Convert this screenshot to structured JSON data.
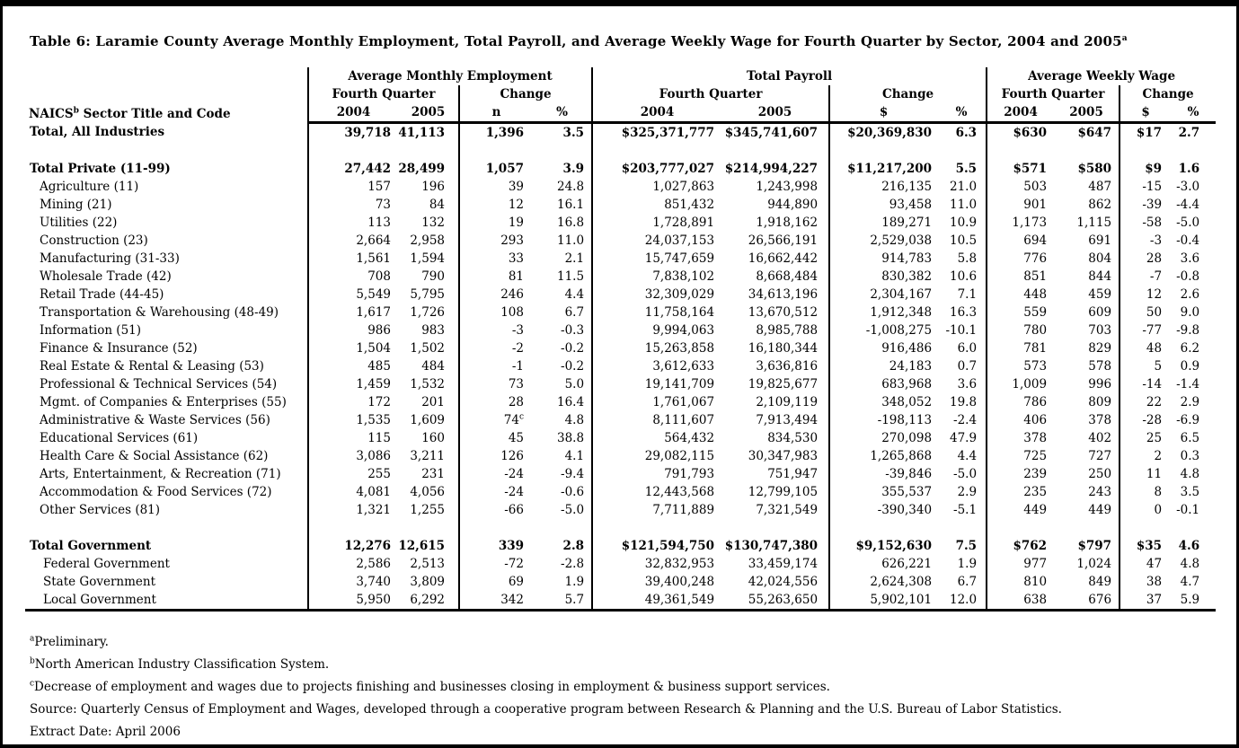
{
  "title": {
    "text": "Table 6: Laramie County Average Monthly Employment, Total Payroll, and Average Weekly Wage for Fourth Quarter by Sector, 2004 and 2005",
    "superscript": "a"
  },
  "table": {
    "stub_header": {
      "prefix": "NAICS",
      "sup": "b",
      "rest": " Sector Title and Code"
    },
    "groups": [
      {
        "label": "Average Monthly Employment",
        "sub": [
          {
            "label": "Fourth Quarter",
            "cols": [
              "2004",
              "2005"
            ]
          },
          {
            "label": "Change",
            "cols": [
              "n",
              "%"
            ]
          }
        ]
      },
      {
        "label": "Total Payroll",
        "sub": [
          {
            "label": "Fourth Quarter",
            "cols": [
              "2004",
              "2005"
            ]
          },
          {
            "label": "Change",
            "cols": [
              "$",
              "%"
            ]
          }
        ]
      },
      {
        "label": "Average Weekly Wage",
        "sub": [
          {
            "label": "Fourth Quarter",
            "cols": [
              "2004",
              "2005"
            ]
          },
          {
            "label": "Change",
            "cols": [
              "$",
              "%"
            ]
          }
        ]
      }
    ],
    "rows": [
      {
        "label": "Total, All Industries",
        "style": "total",
        "cells": [
          "39,718",
          "41,113",
          "1,396",
          "3.5",
          "$325,371,777",
          "$345,741,607",
          "$20,369,830",
          "6.3",
          "$630",
          "$647",
          "$17",
          "2.7"
        ]
      },
      {
        "label": "",
        "style": "spacer",
        "cells": [
          "",
          "",
          "",
          "",
          "",
          "",
          "",
          "",
          "",
          "",
          "",
          ""
        ]
      },
      {
        "label": "Total Private (11-99)",
        "style": "total",
        "cells": [
          "27,442",
          "28,499",
          "1,057",
          "3.9",
          "$203,777,027",
          "$214,994,227",
          "$11,217,200",
          "5.5",
          "$571",
          "$580",
          "$9",
          "1.6"
        ]
      },
      {
        "label": "Agriculture (11)",
        "style": "sector",
        "cells": [
          "157",
          "196",
          "39",
          "24.8",
          "1,027,863",
          "1,243,998",
          "216,135",
          "21.0",
          "503",
          "487",
          "-15",
          "-3.0"
        ]
      },
      {
        "label": "Mining (21)",
        "style": "sector",
        "cells": [
          "73",
          "84",
          "12",
          "16.1",
          "851,432",
          "944,890",
          "93,458",
          "11.0",
          "901",
          "862",
          "-39",
          "-4.4"
        ]
      },
      {
        "label": "Utilities (22)",
        "style": "sector",
        "cells": [
          "113",
          "132",
          "19",
          "16.8",
          "1,728,891",
          "1,918,162",
          "189,271",
          "10.9",
          "1,173",
          "1,115",
          "-58",
          "-5.0"
        ]
      },
      {
        "label": "Construction (23)",
        "style": "sector",
        "cells": [
          "2,664",
          "2,958",
          "293",
          "11.0",
          "24,037,153",
          "26,566,191",
          "2,529,038",
          "10.5",
          "694",
          "691",
          "-3",
          "-0.4"
        ]
      },
      {
        "label": "Manufacturing (31-33)",
        "style": "sector",
        "cells": [
          "1,561",
          "1,594",
          "33",
          "2.1",
          "15,747,659",
          "16,662,442",
          "914,783",
          "5.8",
          "776",
          "804",
          "28",
          "3.6"
        ]
      },
      {
        "label": "Wholesale Trade (42)",
        "style": "sector",
        "cells": [
          "708",
          "790",
          "81",
          "11.5",
          "7,838,102",
          "8,668,484",
          "830,382",
          "10.6",
          "851",
          "844",
          "-7",
          "-0.8"
        ]
      },
      {
        "label": "Retail Trade (44-45)",
        "style": "sector",
        "cells": [
          "5,549",
          "5,795",
          "246",
          "4.4",
          "32,309,029",
          "34,613,196",
          "2,304,167",
          "7.1",
          "448",
          "459",
          "12",
          "2.6"
        ]
      },
      {
        "label": "Transportation & Warehousing (48-49)",
        "style": "sector",
        "cells": [
          "1,617",
          "1,726",
          "108",
          "6.7",
          "11,758,164",
          "13,670,512",
          "1,912,348",
          "16.3",
          "559",
          "609",
          "50",
          "9.0"
        ]
      },
      {
        "label": "Information (51)",
        "style": "sector",
        "cells": [
          "986",
          "983",
          "-3",
          "-0.3",
          "9,994,063",
          "8,985,788",
          "-1,008,275",
          "-10.1",
          "780",
          "703",
          "-77",
          "-9.8"
        ]
      },
      {
        "label": "Finance & Insurance (52)",
        "style": "sector",
        "cells": [
          "1,504",
          "1,502",
          "-2",
          "-0.2",
          "15,263,858",
          "16,180,344",
          "916,486",
          "6.0",
          "781",
          "829",
          "48",
          "6.2"
        ]
      },
      {
        "label": "Real Estate & Rental & Leasing (53)",
        "style": "sector",
        "cells": [
          "485",
          "484",
          "-1",
          "-0.2",
          "3,612,633",
          "3,636,816",
          "24,183",
          "0.7",
          "573",
          "578",
          "5",
          "0.9"
        ]
      },
      {
        "label": "Professional & Technical Services (54)",
        "style": "sector",
        "cells": [
          "1,459",
          "1,532",
          "73",
          "5.0",
          "19,141,709",
          "19,825,677",
          "683,968",
          "3.6",
          "1,009",
          "996",
          "-14",
          "-1.4"
        ]
      },
      {
        "label": "Mgmt. of Companies & Enterprises (55)",
        "style": "sector",
        "cells": [
          "172",
          "201",
          "28",
          "16.4",
          "1,761,067",
          "2,109,119",
          "348,052",
          "19.8",
          "786",
          "809",
          "22",
          "2.9"
        ]
      },
      {
        "label": "Administrative & Waste Services (56)",
        "style": "sector",
        "n_sup": "c",
        "cells": [
          "1,535",
          "1,609",
          "74",
          "4.8",
          "8,111,607",
          "7,913,494",
          "-198,113",
          "-2.4",
          "406",
          "378",
          "-28",
          "-6.9"
        ]
      },
      {
        "label": "Educational Services (61)",
        "style": "sector",
        "cells": [
          "115",
          "160",
          "45",
          "38.8",
          "564,432",
          "834,530",
          "270,098",
          "47.9",
          "378",
          "402",
          "25",
          "6.5"
        ]
      },
      {
        "label": "Health Care & Social Assistance (62)",
        "style": "sector",
        "cells": [
          "3,086",
          "3,211",
          "126",
          "4.1",
          "29,082,115",
          "30,347,983",
          "1,265,868",
          "4.4",
          "725",
          "727",
          "2",
          "0.3"
        ]
      },
      {
        "label": "Arts, Entertainment, & Recreation (71)",
        "style": "sector",
        "cells": [
          "255",
          "231",
          "-24",
          "-9.4",
          "791,793",
          "751,947",
          "-39,846",
          "-5.0",
          "239",
          "250",
          "11",
          "4.8"
        ]
      },
      {
        "label": "Accommodation & Food Services (72)",
        "style": "sector",
        "cells": [
          "4,081",
          "4,056",
          "-24",
          "-0.6",
          "12,443,568",
          "12,799,105",
          "355,537",
          "2.9",
          "235",
          "243",
          "8",
          "3.5"
        ]
      },
      {
        "label": "Other Services (81)",
        "style": "sector",
        "cells": [
          "1,321",
          "1,255",
          "-66",
          "-5.0",
          "7,711,889",
          "7,321,549",
          "-390,340",
          "-5.1",
          "449",
          "449",
          "0",
          "-0.1"
        ]
      },
      {
        "label": "",
        "style": "spacer",
        "cells": [
          "",
          "",
          "",
          "",
          "",
          "",
          "",
          "",
          "",
          "",
          "",
          ""
        ]
      },
      {
        "label": "Total Government",
        "style": "total",
        "cells": [
          "12,276",
          "12,615",
          "339",
          "2.8",
          "$121,594,750",
          "$130,747,380",
          "$9,152,630",
          "7.5",
          "$762",
          "$797",
          "$35",
          "4.6"
        ]
      },
      {
        "label": "Federal Government",
        "style": "govsub",
        "cells": [
          "2,586",
          "2,513",
          "-72",
          "-2.8",
          "32,832,953",
          "33,459,174",
          "626,221",
          "1.9",
          "977",
          "1,024",
          "47",
          "4.8"
        ]
      },
      {
        "label": "State Government",
        "style": "govsub",
        "cells": [
          "3,740",
          "3,809",
          "69",
          "1.9",
          "39,400,248",
          "42,024,556",
          "2,624,308",
          "6.7",
          "810",
          "849",
          "38",
          "4.7"
        ]
      },
      {
        "label": "Local Government",
        "style": "govsub",
        "cells": [
          "5,950",
          "6,292",
          "342",
          "5.7",
          "49,361,549",
          "55,263,650",
          "5,902,101",
          "12.0",
          "638",
          "676",
          "37",
          "5.9"
        ]
      }
    ]
  },
  "footnotes": [
    {
      "sup": "a",
      "text": "Preliminary."
    },
    {
      "sup": "b",
      "text": "North American Industry Classification System."
    },
    {
      "sup": "c",
      "text": "Decrease of employment and wages due to projects finishing and businesses closing in employment & business support services."
    },
    {
      "sup": "",
      "text": "Source: Quarterly Census of Employment and Wages, developed through a cooperative program between Research & Planning and the U.S. Bureau of Labor Statistics."
    },
    {
      "sup": "",
      "text": "Extract Date: April 2006"
    }
  ]
}
